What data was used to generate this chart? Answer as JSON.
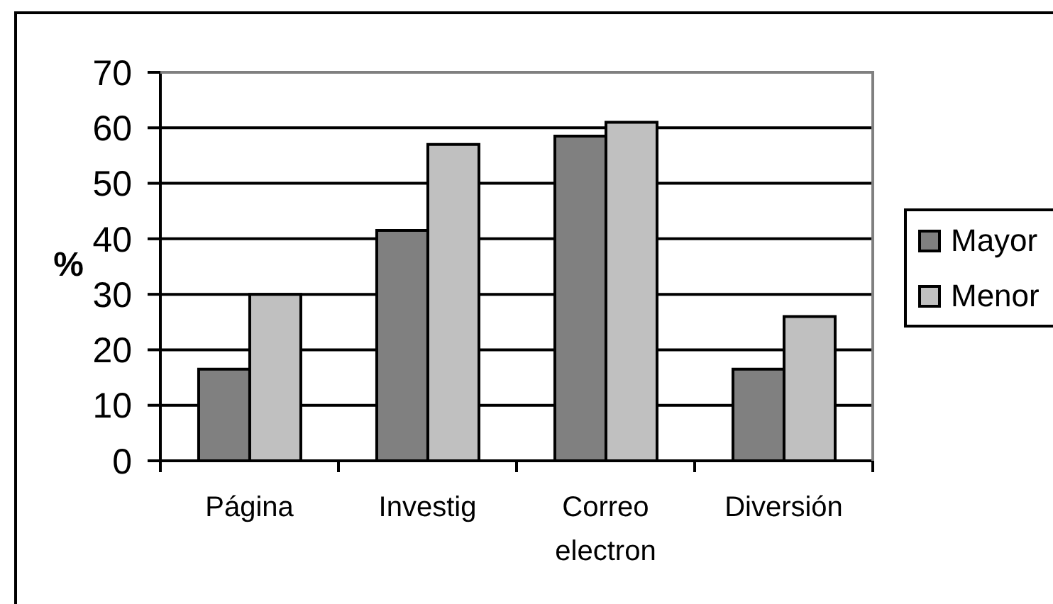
{
  "chart_data": {
    "type": "bar",
    "categories": [
      "Página",
      "Investig",
      "Correo electron",
      "Diversión"
    ],
    "series": [
      {
        "name": "Mayor",
        "color": "#808080",
        "values": [
          16.5,
          41.5,
          58.5,
          16.5
        ]
      },
      {
        "name": "Menor",
        "color": "#c0c0c0",
        "values": [
          30,
          57,
          61,
          26
        ]
      }
    ],
    "ylabel": "%",
    "ylim": [
      0,
      70
    ],
    "yticks": [
      0,
      10,
      20,
      30,
      40,
      50,
      60,
      70
    ],
    "grid": "y",
    "legend": "right"
  }
}
